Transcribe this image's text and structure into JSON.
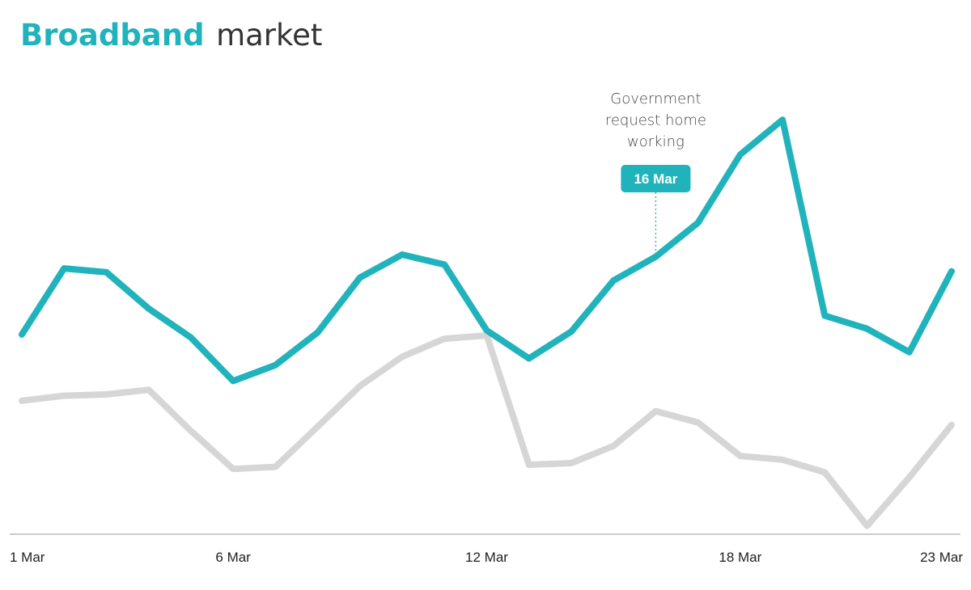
{
  "title": {
    "strong": "Broadband",
    "light": "market"
  },
  "colors": {
    "accent": "#21b3bc",
    "secondary": "#d6d6d6",
    "axis": "#9a9a9a",
    "text": "#222222",
    "title_light": "#333333",
    "annotation_text": "#444444",
    "marker_text": "#ffffff"
  },
  "chart_data": {
    "type": "line",
    "title": "Broadband market",
    "xlabel": "",
    "ylabel": "",
    "grid": false,
    "legend": "none",
    "x": [
      1,
      2,
      3,
      4,
      5,
      6,
      7,
      8,
      9,
      10,
      11,
      12,
      13,
      14,
      15,
      16,
      17,
      18,
      19,
      20,
      21,
      22,
      23
    ],
    "xlim": [
      1,
      23
    ],
    "ylim": [
      0,
      100
    ],
    "x_ticks": [
      {
        "x": 1,
        "label": "1 Mar"
      },
      {
        "x": 6,
        "label": "6 Mar"
      },
      {
        "x": 12,
        "label": "12 Mar"
      },
      {
        "x": 18,
        "label": "18 Mar"
      },
      {
        "x": 23,
        "label": "23 Mar"
      }
    ],
    "series": [
      {
        "color": "#21b3bc",
        "values": [
          47.6,
          63.4,
          62.5,
          53.8,
          46.9,
          36.5,
          40.3,
          48.1,
          61.2,
          66.7,
          64.3,
          48.6,
          41.9,
          48.3,
          60.5,
          66.2,
          74.3,
          90.6,
          98.9,
          52.1,
          49.0,
          43.4,
          62.7
        ]
      },
      {
        "color": "#d6d6d6",
        "values": [
          31.8,
          33.0,
          33.3,
          34.4,
          24.6,
          15.5,
          16.0,
          25.6,
          35.3,
          42.3,
          46.6,
          47.4,
          16.5,
          16.9,
          21.0,
          29.3,
          26.6,
          18.6,
          17.7,
          14.7,
          1.9,
          13.5,
          26.0
        ]
      }
    ],
    "annotations": [
      {
        "x": 16,
        "marker_label": "16 Mar",
        "text": [
          "Government",
          "request home",
          "working"
        ]
      }
    ]
  }
}
